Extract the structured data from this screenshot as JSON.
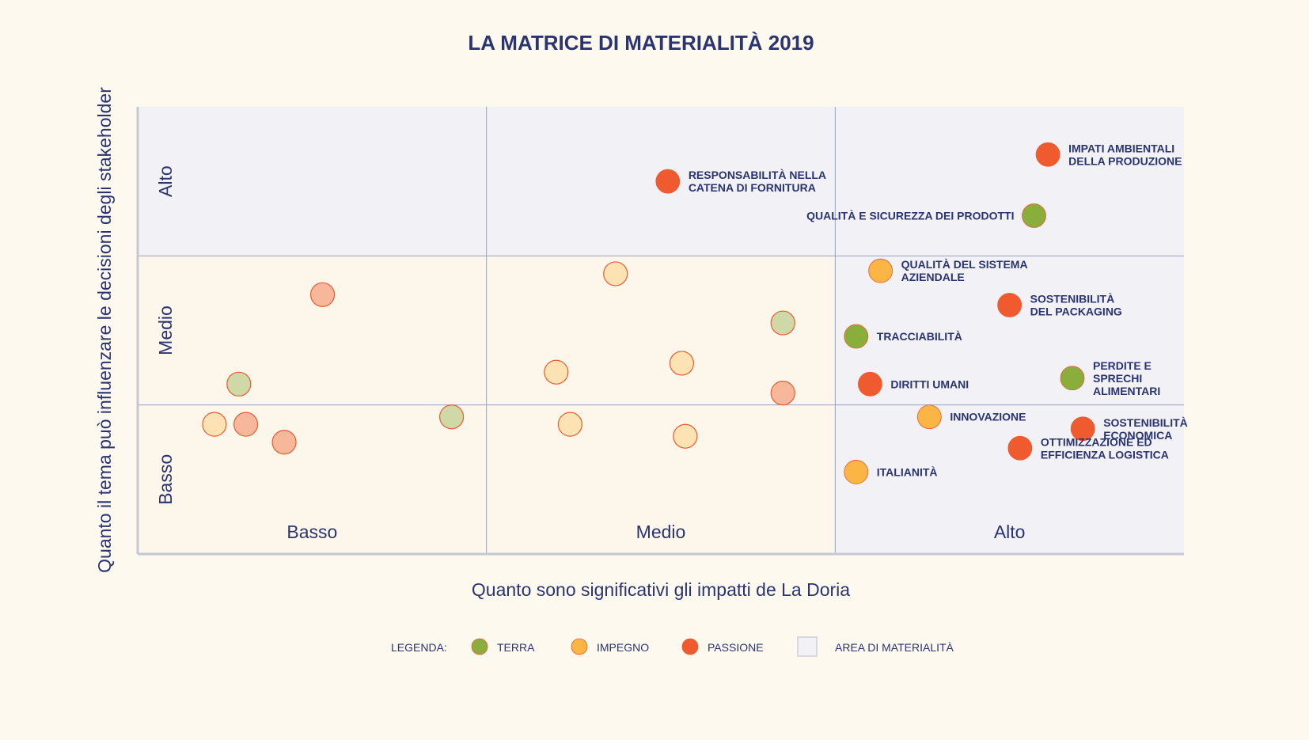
{
  "chart_data": {
    "type": "scatter",
    "title": "LA MATRICE DI MATERIALITÀ 2019",
    "xlabel": "Quanto sono significativi gli impatti de La Doria",
    "ylabel": "Quanto il tema può influenzare le decisioni degli stakeholder",
    "xlim": [
      0,
      3
    ],
    "ylim": [
      0,
      3
    ],
    "x_ticks": [
      "Basso",
      "Medio",
      "Alto"
    ],
    "y_ticks": [
      "Basso",
      "Medio",
      "Alto"
    ],
    "materiality_area": {
      "x_from": 2,
      "y_from": 0,
      "note": "plus y from 2 for all x"
    },
    "colors": {
      "TERRA": "#8aae3c",
      "IMPEGNO": "#fbb544",
      "PASSIONE": "#ef5a2e",
      "TERRA_faded": "#cfd9a8",
      "IMPEGNO_faded": "#fde2b4",
      "PASSIONE_faded": "#f7b79a",
      "area": "#f1f1f6",
      "grid": "#9a9fc0",
      "text": "#2a3470"
    },
    "points": [
      {
        "x": 2.61,
        "y": 2.68,
        "category": "PASSIONE",
        "label": [
          "IMPATI AMBIENTALI",
          "DELLA PRODUZIONE"
        ]
      },
      {
        "x": 2.57,
        "y": 2.27,
        "category": "TERRA",
        "label": [
          "QUALITÀ E SICUREZZA DEI PRODOTTI"
        ]
      },
      {
        "x": 1.52,
        "y": 2.5,
        "category": "PASSIONE",
        "label": [
          "RESPONSABILITÀ NELLA",
          "CATENA DI FORNITURA"
        ]
      },
      {
        "x": 2.13,
        "y": 1.9,
        "category": "IMPEGNO",
        "label": [
          "QUALITÀ DEL SISTEMA",
          "AZIENDALE"
        ]
      },
      {
        "x": 2.5,
        "y": 1.67,
        "category": "PASSIONE",
        "label": [
          "SOSTENIBILITÀ",
          "DEL PACKAGING"
        ]
      },
      {
        "x": 2.06,
        "y": 1.46,
        "category": "TERRA",
        "label": [
          "TRACCIABILITÀ"
        ]
      },
      {
        "x": 2.68,
        "y": 1.18,
        "category": "TERRA",
        "label": [
          "PERDITE E",
          "SPRECHI",
          "ALIMENTARI"
        ]
      },
      {
        "x": 2.1,
        "y": 1.14,
        "category": "PASSIONE",
        "label": [
          "DIRITTI UMANI"
        ]
      },
      {
        "x": 2.27,
        "y": 0.92,
        "category": "IMPEGNO",
        "label": [
          "INNOVAZIONE"
        ]
      },
      {
        "x": 2.71,
        "y": 0.84,
        "category": "PASSIONE",
        "label": [
          "SOSTENIBILITÀ",
          "ECONOMICA"
        ]
      },
      {
        "x": 2.53,
        "y": 0.71,
        "category": "PASSIONE",
        "label": [
          "OTTIMIZZAZIONE ED",
          "EFFICIENZA LOGISTICA"
        ]
      },
      {
        "x": 2.06,
        "y": 0.55,
        "category": "IMPEGNO",
        "label": [
          "ITALIANITÀ"
        ]
      },
      {
        "x": 1.37,
        "y": 1.88,
        "category": "IMPEGNO_faded",
        "label": []
      },
      {
        "x": 0.53,
        "y": 1.74,
        "category": "PASSIONE_faded",
        "label": []
      },
      {
        "x": 1.85,
        "y": 1.55,
        "category": "TERRA_faded",
        "label": []
      },
      {
        "x": 1.56,
        "y": 1.28,
        "category": "IMPEGNO_faded",
        "label": []
      },
      {
        "x": 1.2,
        "y": 1.22,
        "category": "IMPEGNO_faded",
        "label": []
      },
      {
        "x": 0.29,
        "y": 1.14,
        "category": "TERRA_faded",
        "label": []
      },
      {
        "x": 1.85,
        "y": 1.08,
        "category": "PASSIONE_faded",
        "label": []
      },
      {
        "x": 0.9,
        "y": 0.92,
        "category": "TERRA_faded",
        "label": []
      },
      {
        "x": 0.22,
        "y": 0.87,
        "category": "IMPEGNO_faded",
        "label": []
      },
      {
        "x": 0.31,
        "y": 0.87,
        "category": "PASSIONE_faded",
        "label": []
      },
      {
        "x": 1.24,
        "y": 0.87,
        "category": "IMPEGNO_faded",
        "label": []
      },
      {
        "x": 0.42,
        "y": 0.75,
        "category": "PASSIONE_faded",
        "label": []
      },
      {
        "x": 1.57,
        "y": 0.79,
        "category": "IMPEGNO_faded",
        "label": []
      }
    ],
    "legend": {
      "title": "LEGENDA:",
      "items": [
        {
          "name": "TERRA",
          "color": "#8aae3c"
        },
        {
          "name": "IMPEGNO",
          "color": "#fbb544"
        },
        {
          "name": "PASSIONE",
          "color": "#ef5a2e"
        },
        {
          "name": "AREA DI MATERIALITÀ",
          "color": "#f1f1f6"
        }
      ],
      "placement": "bottom-center"
    }
  }
}
